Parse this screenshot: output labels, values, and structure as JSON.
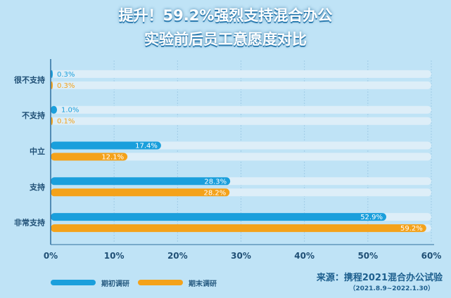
{
  "title_line1": "提升！59.2%强烈支持混合办公",
  "title_line2": "实验前后员工意愿度对比",
  "source_line1": "来源：携程2021混合办公试验",
  "source_line2": "（2021.8.9~2022.1.30）",
  "colors": {
    "before": "#1a9fdc",
    "after": "#f4a21a",
    "track": "#ddeef8",
    "axis": "#2f6f9f"
  },
  "chart_data": {
    "type": "bar",
    "orientation": "horizontal",
    "title": "提升！59.2%强烈支持混合办公 实验前后员工意愿度对比",
    "categories": [
      "很不支持",
      "不支持",
      "中立",
      "支持",
      "非常支持"
    ],
    "series": [
      {
        "name": "期初调研",
        "values": [
          0.3,
          1.0,
          17.4,
          28.3,
          52.9
        ]
      },
      {
        "name": "期末调研",
        "values": [
          0.3,
          0.1,
          12.1,
          28.2,
          59.2
        ]
      }
    ],
    "x_ticks": [
      "0%",
      "10%",
      "20%",
      "30%",
      "40%",
      "50%",
      "60%"
    ],
    "xlim": [
      0,
      60
    ],
    "value_suffix": "%",
    "legend_position": "bottom-left",
    "grid": true
  }
}
